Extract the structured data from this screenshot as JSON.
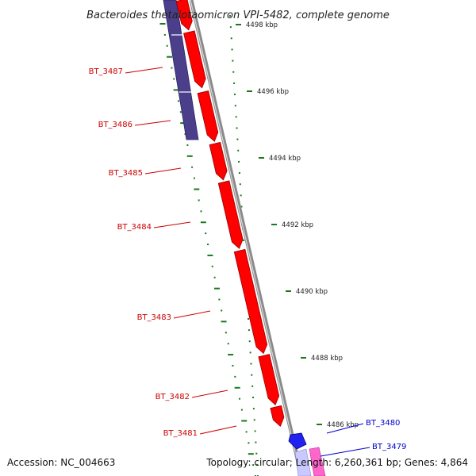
{
  "title": "Bacteroides thetaiotaomicron VPI-5482, complete genome",
  "footer": {
    "accession": "Accession: NC_004663",
    "summary": "Topology: circular; Length: 6,260,361 bp; Genes: 4,864"
  },
  "ticks": [
    {
      "label": "4498 kbp"
    },
    {
      "label": "4496 kbp"
    },
    {
      "label": "4494 kbp"
    },
    {
      "label": "4492 kbp"
    },
    {
      "label": "4490 kbp"
    },
    {
      "label": "4488 kbp"
    },
    {
      "label": "4486 kbp"
    }
  ],
  "genes": [
    {
      "name": "BT_3487",
      "strand": "forward",
      "color": "#cc0000"
    },
    {
      "name": "BT_3486",
      "strand": "forward",
      "color": "#cc0000"
    },
    {
      "name": "BT_3485",
      "strand": "forward",
      "color": "#cc0000"
    },
    {
      "name": "BT_3484",
      "strand": "forward",
      "color": "#cc0000"
    },
    {
      "name": "BT_3483",
      "strand": "forward",
      "color": "#cc0000"
    },
    {
      "name": "BT_3482",
      "strand": "forward",
      "color": "#cc0000"
    },
    {
      "name": "BT_3481",
      "strand": "forward",
      "color": "#cc0000"
    },
    {
      "name": "BT_3480",
      "strand": "reverse",
      "color": "#0000cc"
    },
    {
      "name": "BT_3479",
      "strand": "reverse",
      "color": "#0000cc"
    }
  ],
  "colors": {
    "forward_cds": "#ff0000",
    "reverse_cds": "#2222ee",
    "feature_band": "#4b3f8c",
    "backbone": "#8a8a8a",
    "tick_marks": "#1a7a1a",
    "label_forward": "#cc0000",
    "label_reverse": "#0000cc"
  }
}
